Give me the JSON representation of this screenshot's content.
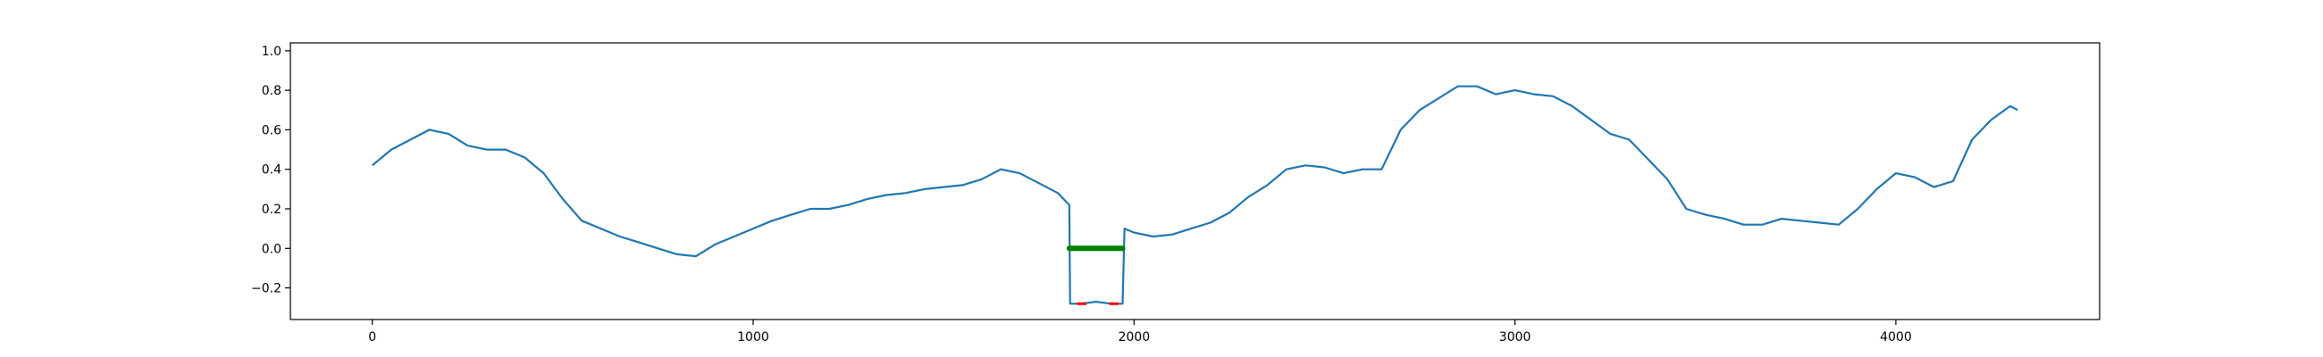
{
  "chart_data": {
    "type": "line",
    "title": "",
    "xlabel": "",
    "ylabel": "",
    "xlim": [
      -215,
      4535
    ],
    "ylim": [
      -0.36,
      1.04
    ],
    "x_ticks": [
      0,
      1000,
      2000,
      3000,
      4000
    ],
    "x_tick_labels": [
      "0",
      "1000",
      "2000",
      "3000",
      "4000"
    ],
    "y_ticks": [
      -0.2,
      0.0,
      0.2,
      0.4,
      0.6,
      0.8,
      1.0
    ],
    "y_tick_labels": [
      "−0.2",
      "0.0",
      "0.2",
      "0.4",
      "0.6",
      "0.8",
      "1.0"
    ],
    "grid": false,
    "legend": "none",
    "series": [
      {
        "color": "#1f77b4",
        "x": [
          0,
          50,
          100,
          150,
          200,
          250,
          300,
          350,
          400,
          450,
          500,
          550,
          600,
          650,
          700,
          750,
          800,
          850,
          900,
          950,
          1000,
          1050,
          1100,
          1150,
          1200,
          1250,
          1300,
          1350,
          1400,
          1450,
          1500,
          1550,
          1600,
          1650,
          1700,
          1750,
          1800,
          1830,
          1832,
          1860,
          1900,
          1940,
          1970,
          1975,
          2000,
          2050,
          2100,
          2150,
          2200,
          2250,
          2300,
          2350,
          2400,
          2450,
          2500,
          2550,
          2600,
          2650,
          2700,
          2750,
          2800,
          2850,
          2900,
          2950,
          3000,
          3050,
          3100,
          3150,
          3200,
          3250,
          3300,
          3350,
          3400,
          3450,
          3500,
          3550,
          3600,
          3650,
          3700,
          3750,
          3800,
          3850,
          3900,
          3950,
          4000,
          4050,
          4100,
          4150,
          4200,
          4250,
          4300,
          4320
        ],
        "y": [
          0.42,
          0.5,
          0.55,
          0.6,
          0.58,
          0.52,
          0.5,
          0.5,
          0.46,
          0.38,
          0.25,
          0.14,
          0.1,
          0.06,
          0.03,
          0.0,
          -0.03,
          -0.04,
          0.02,
          0.06,
          0.1,
          0.14,
          0.17,
          0.2,
          0.2,
          0.22,
          0.25,
          0.27,
          0.28,
          0.3,
          0.31,
          0.32,
          0.35,
          0.4,
          0.38,
          0.33,
          0.28,
          0.22,
          -0.28,
          -0.28,
          -0.27,
          -0.28,
          -0.28,
          0.1,
          0.08,
          0.06,
          0.07,
          0.1,
          0.13,
          0.18,
          0.26,
          0.32,
          0.4,
          0.42,
          0.41,
          0.38,
          0.4,
          0.4,
          0.6,
          0.7,
          0.76,
          0.82,
          0.82,
          0.78,
          0.8,
          0.78,
          0.77,
          0.72,
          0.65,
          0.58,
          0.55,
          0.45,
          0.35,
          0.2,
          0.17,
          0.15,
          0.12,
          0.12,
          0.15,
          0.14,
          0.13,
          0.12,
          0.2,
          0.3,
          0.38,
          0.36,
          0.31,
          0.34,
          0.55,
          0.65,
          0.72,
          0.7
        ]
      },
      {
        "color": "#008000",
        "x": [
          1830,
          1970
        ],
        "y": [
          0.0,
          0.0
        ]
      },
      {
        "color": "#ff0000",
        "x": [
          1850,
          1875
        ],
        "y": [
          -0.28,
          -0.28
        ]
      },
      {
        "color": "#ff0000",
        "x": [
          1935,
          1960
        ],
        "y": [
          -0.28,
          -0.28
        ]
      }
    ]
  }
}
